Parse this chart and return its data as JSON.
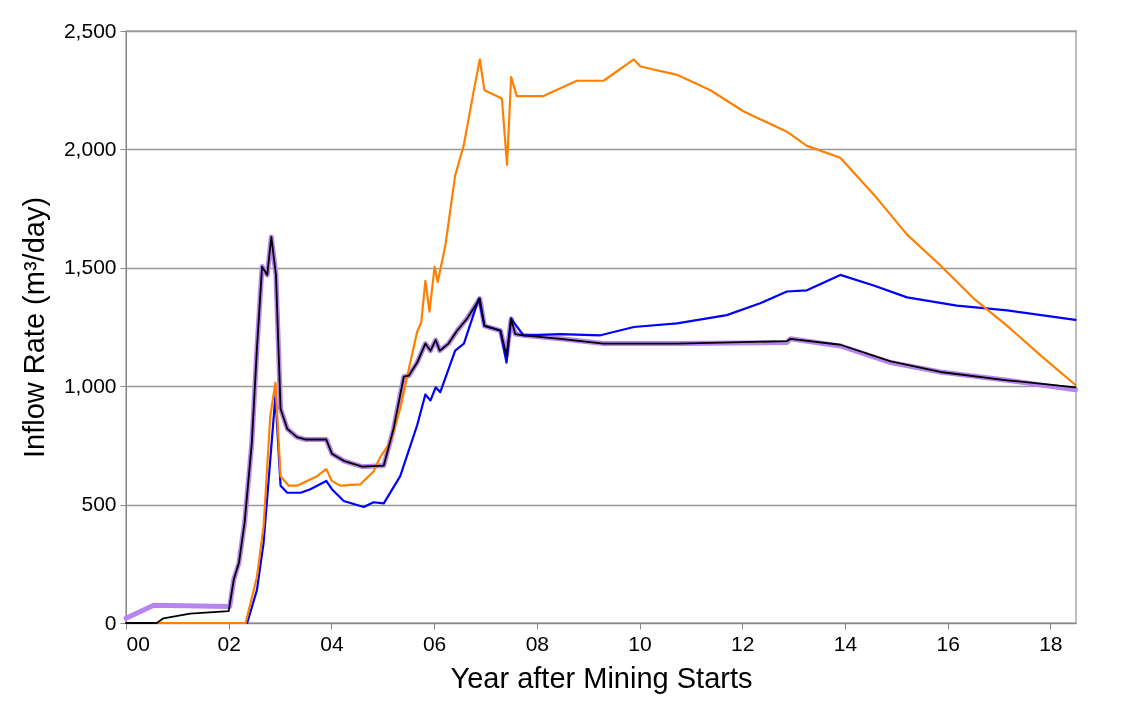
{
  "chart_data": {
    "type": "line",
    "xlabel": "Year after Mining Starts",
    "ylabel": "Inflow Rate (m³/day)",
    "xlim": [
      0,
      18.5
    ],
    "xticks": [
      {
        "value": 0,
        "label": "00"
      },
      {
        "value": 2,
        "label": "02"
      },
      {
        "value": 4,
        "label": "04"
      },
      {
        "value": 6,
        "label": "06"
      },
      {
        "value": 8,
        "label": "08"
      },
      {
        "value": 10,
        "label": "10"
      },
      {
        "value": 12,
        "label": "12"
      },
      {
        "value": 14,
        "label": "14"
      },
      {
        "value": 16,
        "label": "16"
      },
      {
        "value": 18,
        "label": "18"
      }
    ],
    "ylim": [
      0,
      2500
    ],
    "yticks": [
      0,
      500,
      {
        "value": 1000,
        "label": "1,000"
      },
      {
        "value": 1500,
        "label": "1,500"
      },
      {
        "value": 2000,
        "label": "2,000"
      },
      {
        "value": 2500,
        "label": "2,500"
      }
    ],
    "grid": "y",
    "legend": false,
    "marker": "none",
    "line_style": "solid",
    "series": [
      {
        "color": "#b784f0",
        "x": [
          0,
          0.54,
          2.02,
          2.1,
          2.2,
          2.31,
          2.45,
          2.55,
          2.65,
          2.75,
          2.83,
          2.92,
          3.01,
          3.14,
          3.33,
          3.49,
          3.9,
          4.01,
          4.24,
          4.6,
          5.02,
          5.21,
          5.41,
          5.51,
          5.67,
          5.83,
          5.93,
          6.03,
          6.11,
          6.28,
          6.45,
          6.64,
          6.89,
          6.98,
          7.29,
          7.41,
          7.5,
          7.58,
          7.74,
          8.46,
          9.3,
          10.73,
          12.87,
          12.94,
          13.91,
          14.89,
          15.86,
          17.16,
          18.49
        ],
        "values": [
          20,
          75,
          70,
          185,
          255,
          425,
          760,
          1160,
          1505,
          1470,
          1630,
          1470,
          905,
          820,
          785,
          775,
          775,
          715,
          685,
          660,
          665,
          820,
          1040,
          1045,
          1100,
          1180,
          1150,
          1195,
          1150,
          1180,
          1235,
          1285,
          1370,
          1255,
          1235,
          1130,
          1285,
          1220,
          1215,
          1200,
          1180,
          1180,
          1185,
          1200,
          1170,
          1100,
          1060,
          1025,
          985
        ]
      },
      {
        "color": "#000000",
        "x": [
          0,
          0.6,
          0.73,
          1.25,
          2.0,
          2.1,
          2.2,
          2.31,
          2.45,
          2.55,
          2.65,
          2.75,
          2.83,
          2.92,
          3.01,
          3.14,
          3.33,
          3.49,
          3.9,
          4.01,
          4.24,
          4.6,
          5.02,
          5.21,
          5.41,
          5.51,
          5.67,
          5.83,
          5.93,
          6.03,
          6.11,
          6.28,
          6.45,
          6.64,
          6.89,
          6.98,
          7.29,
          7.41,
          7.5,
          7.58,
          7.74,
          8.46,
          9.3,
          10.73,
          12.87,
          12.94,
          13.91,
          14.89,
          15.86,
          17.16,
          18.49
        ],
        "values": [
          0,
          0,
          20,
          40,
          50,
          185,
          255,
          425,
          760,
          1160,
          1505,
          1470,
          1630,
          1470,
          905,
          820,
          785,
          775,
          775,
          715,
          685,
          660,
          665,
          820,
          1040,
          1045,
          1100,
          1180,
          1150,
          1195,
          1150,
          1180,
          1235,
          1285,
          1370,
          1255,
          1235,
          1130,
          1285,
          1220,
          1215,
          1200,
          1180,
          1180,
          1190,
          1200,
          1175,
          1105,
          1060,
          1025,
          995
        ]
      },
      {
        "color": "#ff8000",
        "x": [
          0,
          2.33,
          2.55,
          2.68,
          2.81,
          2.91,
          3.01,
          3.17,
          3.33,
          3.72,
          3.9,
          4.01,
          4.17,
          4.56,
          4.82,
          4.95,
          5.15,
          5.34,
          5.51,
          5.67,
          5.75,
          5.83,
          5.91,
          6.01,
          6.07,
          6.22,
          6.41,
          6.58,
          6.77,
          6.89,
          6.98,
          7.32,
          7.42,
          7.5,
          7.61,
          8.13,
          8.78,
          9.3,
          9.89,
          10.02,
          10.73,
          11.38,
          12.03,
          12.87,
          13.26,
          13.91,
          14.56,
          15.21,
          15.86,
          16.51,
          17.16,
          17.81,
          18.49
        ],
        "values": [
          0,
          0,
          195,
          410,
          875,
          1015,
          620,
          580,
          580,
          620,
          650,
          600,
          580,
          585,
          640,
          700,
          765,
          905,
          1075,
          1230,
          1270,
          1445,
          1315,
          1505,
          1440,
          1595,
          1890,
          2020,
          2245,
          2380,
          2250,
          2215,
          1935,
          2305,
          2225,
          2225,
          2290,
          2290,
          2380,
          2350,
          2315,
          2250,
          2160,
          2075,
          2015,
          1965,
          1810,
          1640,
          1510,
          1370,
          1255,
          1130,
          1005
        ]
      },
      {
        "color": "#0000ff",
        "x": [
          0,
          2.36,
          2.55,
          2.68,
          2.81,
          2.91,
          3.01,
          3.14,
          3.4,
          3.59,
          3.9,
          4.01,
          4.24,
          4.63,
          4.82,
          5.02,
          5.34,
          5.67,
          5.83,
          5.93,
          6.03,
          6.12,
          6.41,
          6.58,
          6.87,
          6.98,
          7.29,
          7.41,
          7.5,
          7.74,
          8.46,
          9.24,
          9.89,
          10.73,
          11.7,
          12.35,
          12.87,
          13.26,
          13.91,
          14.56,
          15.21,
          16.18,
          17.16,
          18.49
        ],
        "values": [
          0,
          0,
          140,
          340,
          690,
          960,
          580,
          550,
          550,
          565,
          600,
          565,
          515,
          490,
          510,
          505,
          620,
          835,
          965,
          940,
          995,
          975,
          1150,
          1180,
          1370,
          1255,
          1235,
          1100,
          1285,
          1215,
          1220,
          1215,
          1250,
          1265,
          1300,
          1350,
          1400,
          1405,
          1470,
          1425,
          1375,
          1340,
          1320,
          1280
        ]
      }
    ]
  }
}
